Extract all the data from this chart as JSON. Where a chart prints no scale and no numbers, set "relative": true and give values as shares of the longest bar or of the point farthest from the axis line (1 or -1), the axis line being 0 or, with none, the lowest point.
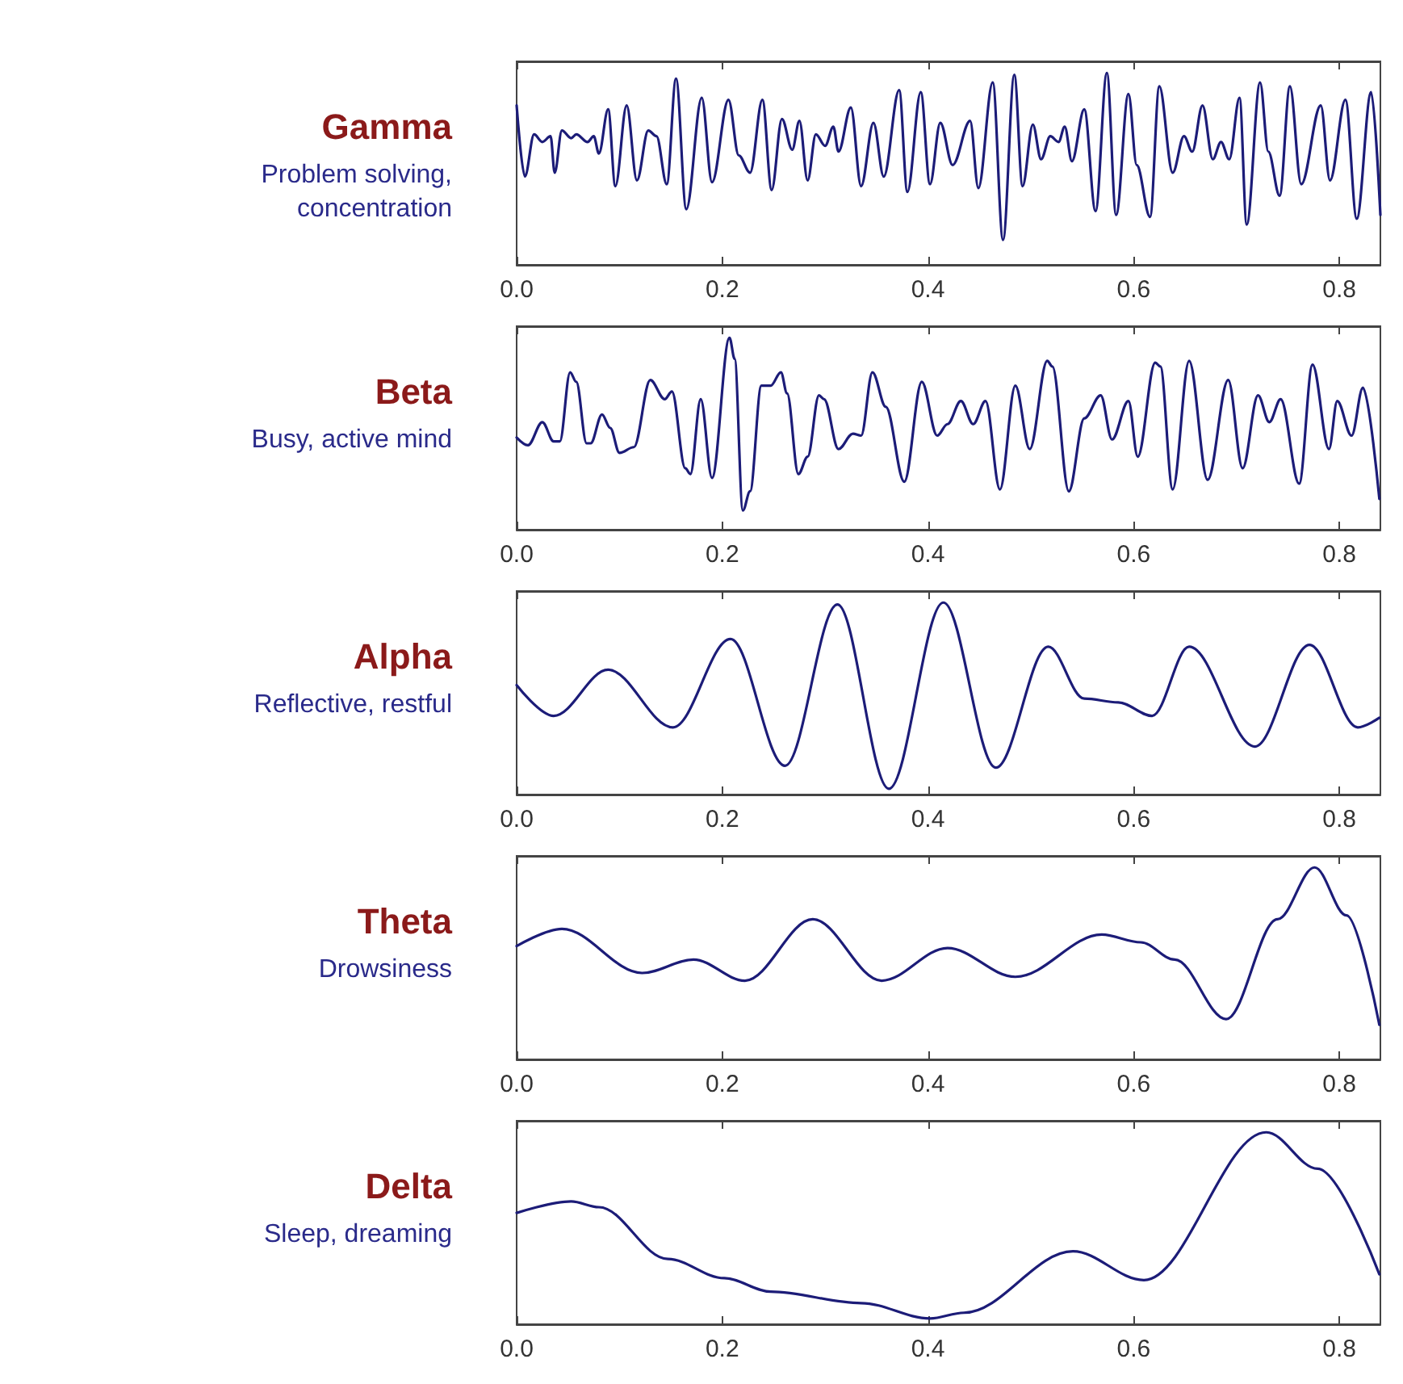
{
  "chart_data": [
    {
      "type": "line",
      "title": "Gamma",
      "subtitle": "Problem solving,\nconcentration",
      "relative": true,
      "color": "#1c1c78",
      "marker": "none",
      "line_style": "solid",
      "xlim": [
        0,
        0.84
      ],
      "xticks": [
        {
          "value": 0,
          "label": "0.0"
        },
        {
          "value": 0.2,
          "label": "0.2"
        },
        {
          "value": 0.4,
          "label": "0.4"
        },
        {
          "value": 0.6,
          "label": "0.6"
        },
        {
          "value": 0.8,
          "label": "0.8"
        }
      ],
      "x": [
        0,
        0.008,
        0.017,
        0.025,
        0.033,
        0.037,
        0.044,
        0.053,
        0.058,
        0.069,
        0.075,
        0.08,
        0.089,
        0.096,
        0.107,
        0.117,
        0.128,
        0.136,
        0.146,
        0.155,
        0.165,
        0.18,
        0.19,
        0.206,
        0.216,
        0.227,
        0.239,
        0.248,
        0.258,
        0.268,
        0.275,
        0.283,
        0.291,
        0.3,
        0.308,
        0.313,
        0.325,
        0.335,
        0.347,
        0.357,
        0.372,
        0.38,
        0.393,
        0.402,
        0.412,
        0.424,
        0.441,
        0.449,
        0.463,
        0.473,
        0.484,
        0.492,
        0.502,
        0.51,
        0.519,
        0.527,
        0.533,
        0.54,
        0.552,
        0.563,
        0.574,
        0.583,
        0.595,
        0.603,
        0.616,
        0.625,
        0.638,
        0.649,
        0.657,
        0.667,
        0.677,
        0.685,
        0.693,
        0.703,
        0.71,
        0.723,
        0.731,
        0.742,
        0.752,
        0.763,
        0.782,
        0.791,
        0.806,
        0.817,
        0.831,
        0.84
      ],
      "values": [
        0.83,
        0.46,
        0.68,
        0.64,
        0.67,
        0.48,
        0.7,
        0.66,
        0.68,
        0.64,
        0.67,
        0.58,
        0.81,
        0.41,
        0.83,
        0.44,
        0.7,
        0.67,
        0.42,
        0.97,
        0.29,
        0.87,
        0.43,
        0.86,
        0.57,
        0.48,
        0.86,
        0.39,
        0.76,
        0.6,
        0.75,
        0.44,
        0.68,
        0.62,
        0.72,
        0.59,
        0.82,
        0.41,
        0.74,
        0.46,
        0.91,
        0.38,
        0.9,
        0.42,
        0.74,
        0.52,
        0.75,
        0.4,
        0.95,
        0.13,
        0.99,
        0.41,
        0.73,
        0.55,
        0.67,
        0.64,
        0.72,
        0.54,
        0.81,
        0.28,
        1,
        0.26,
        0.89,
        0.52,
        0.25,
        0.93,
        0.48,
        0.67,
        0.59,
        0.83,
        0.55,
        0.64,
        0.55,
        0.87,
        0.21,
        0.95,
        0.59,
        0.36,
        0.93,
        0.42,
        0.83,
        0.44,
        0.86,
        0.24,
        0.9,
        0.26
      ]
    },
    {
      "type": "line",
      "title": "Beta",
      "subtitle": "Busy, active mind",
      "relative": true,
      "color": "#1c1c78",
      "marker": "none",
      "line_style": "solid",
      "xlim": [
        0,
        0.84
      ],
      "xticks": [
        {
          "value": 0,
          "label": "0.0"
        },
        {
          "value": 0.2,
          "label": "0.2"
        },
        {
          "value": 0.4,
          "label": "0.4"
        },
        {
          "value": 0.6,
          "label": "0.6"
        },
        {
          "value": 0.8,
          "label": "0.8"
        }
      ],
      "x": [
        0,
        0.011,
        0.025,
        0.036,
        0.042,
        0.052,
        0.058,
        0.068,
        0.072,
        0.083,
        0.091,
        0.1,
        0.114,
        0.13,
        0.144,
        0.151,
        0.164,
        0.169,
        0.179,
        0.19,
        0.207,
        0.212,
        0.22,
        0.227,
        0.238,
        0.247,
        0.257,
        0.263,
        0.274,
        0.283,
        0.294,
        0.299,
        0.313,
        0.327,
        0.335,
        0.346,
        0.359,
        0.377,
        0.394,
        0.409,
        0.419,
        0.432,
        0.444,
        0.456,
        0.47,
        0.485,
        0.499,
        0.516,
        0.521,
        0.537,
        0.552,
        0.568,
        0.579,
        0.595,
        0.604,
        0.621,
        0.626,
        0.638,
        0.654,
        0.672,
        0.692,
        0.706,
        0.721,
        0.732,
        0.743,
        0.761,
        0.774,
        0.79,
        0.798,
        0.812,
        0.823,
        0.839
      ],
      "values": [
        0.48,
        0.44,
        0.56,
        0.46,
        0.46,
        0.82,
        0.77,
        0.45,
        0.45,
        0.6,
        0.53,
        0.4,
        0.43,
        0.78,
        0.68,
        0.72,
        0.32,
        0.29,
        0.68,
        0.27,
        1,
        0.89,
        0.1,
        0.2,
        0.75,
        0.75,
        0.82,
        0.71,
        0.29,
        0.38,
        0.7,
        0.68,
        0.42,
        0.5,
        0.49,
        0.82,
        0.64,
        0.25,
        0.77,
        0.49,
        0.55,
        0.67,
        0.55,
        0.67,
        0.21,
        0.75,
        0.42,
        0.88,
        0.85,
        0.2,
        0.58,
        0.7,
        0.47,
        0.67,
        0.38,
        0.87,
        0.85,
        0.21,
        0.88,
        0.26,
        0.78,
        0.32,
        0.7,
        0.56,
        0.68,
        0.24,
        0.86,
        0.42,
        0.67,
        0.49,
        0.74,
        0.16
      ]
    },
    {
      "type": "line",
      "title": "Alpha",
      "subtitle": "Reflective, restful",
      "relative": true,
      "color": "#1c1c78",
      "marker": "none",
      "line_style": "solid",
      "xlim": [
        0,
        0.84
      ],
      "xticks": [
        {
          "value": 0,
          "label": "0.0"
        },
        {
          "value": 0.2,
          "label": "0.2"
        },
        {
          "value": 0.4,
          "label": "0.4"
        },
        {
          "value": 0.6,
          "label": "0.6"
        },
        {
          "value": 0.8,
          "label": "0.8"
        }
      ],
      "x": [
        0,
        0.036,
        0.089,
        0.152,
        0.208,
        0.261,
        0.312,
        0.362,
        0.415,
        0.466,
        0.517,
        0.552,
        0.585,
        0.618,
        0.654,
        0.718,
        0.771,
        0.818,
        0.839
      ],
      "values": [
        0.57,
        0.41,
        0.65,
        0.35,
        0.81,
        0.15,
        0.99,
        0.03,
        1,
        0.14,
        0.77,
        0.5,
        0.48,
        0.41,
        0.77,
        0.25,
        0.78,
        0.35,
        0.4
      ]
    },
    {
      "type": "line",
      "title": "Theta",
      "subtitle": "Drowsiness",
      "relative": true,
      "color": "#1c1c78",
      "marker": "none",
      "line_style": "solid",
      "xlim": [
        0,
        0.84
      ],
      "xticks": [
        {
          "value": 0,
          "label": "0.0"
        },
        {
          "value": 0.2,
          "label": "0.2"
        },
        {
          "value": 0.4,
          "label": "0.4"
        },
        {
          "value": 0.6,
          "label": "0.6"
        },
        {
          "value": 0.8,
          "label": "0.8"
        }
      ],
      "x": [
        0,
        0.044,
        0.122,
        0.172,
        0.222,
        0.288,
        0.355,
        0.419,
        0.485,
        0.569,
        0.607,
        0.64,
        0.69,
        0.74,
        0.776,
        0.807,
        0.839
      ],
      "values": [
        0.59,
        0.68,
        0.45,
        0.52,
        0.41,
        0.73,
        0.41,
        0.58,
        0.43,
        0.65,
        0.61,
        0.52,
        0.21,
        0.73,
        1,
        0.75,
        0.18
      ]
    },
    {
      "type": "line",
      "title": "Delta",
      "subtitle": "Sleep, dreaming",
      "relative": true,
      "color": "#1c1c78",
      "marker": "none",
      "line_style": "solid",
      "xlim": [
        0,
        0.84
      ],
      "xticks": [
        {
          "value": 0,
          "label": "0.0"
        },
        {
          "value": 0.2,
          "label": "0.2"
        },
        {
          "value": 0.4,
          "label": "0.4"
        },
        {
          "value": 0.6,
          "label": "0.6"
        },
        {
          "value": 0.8,
          "label": "0.8"
        }
      ],
      "x": [
        0,
        0.053,
        0.08,
        0.147,
        0.202,
        0.247,
        0.335,
        0.402,
        0.435,
        0.541,
        0.61,
        0.729,
        0.779,
        0.839
      ],
      "values": [
        0.58,
        0.64,
        0.61,
        0.34,
        0.24,
        0.17,
        0.11,
        0.03,
        0.06,
        0.38,
        0.23,
        1,
        0.81,
        0.26
      ]
    }
  ]
}
